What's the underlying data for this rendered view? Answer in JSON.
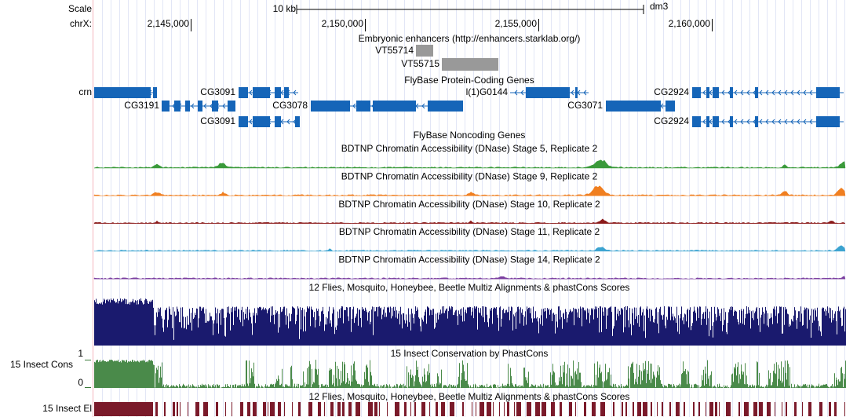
{
  "ruler": {
    "scale_label": "Scale",
    "scale_length": "10 kb",
    "assembly": "dm3",
    "chrom": "chrX:",
    "positions": [
      "2,145,000",
      "2,150,000",
      "2,155,000",
      "2,160,000"
    ]
  },
  "tracks": {
    "enhancers": {
      "title": "Embryonic enhancers (http://enhancers.starklab.org/)",
      "items": [
        "VT55714",
        "VT55715"
      ]
    },
    "coding": {
      "title": "FlyBase Protein-Coding Genes",
      "genes": [
        "crn",
        "CG3091",
        "l(1)G0144",
        "CG2924",
        "CG3191",
        "CG3078",
        "CG3071",
        "CG3091",
        "CG2924"
      ]
    },
    "noncoding": {
      "title": "FlyBase Noncoding Genes"
    },
    "dnase": [
      {
        "title": "BDTNP Chromatin Accessibility (DNase) Stage 5, Replicate 2",
        "color": "#3a9a3a"
      },
      {
        "title": "BDTNP Chromatin Accessibility (DNase) Stage 9, Replicate 2",
        "color": "#f07f20"
      },
      {
        "title": "BDTNP Chromatin Accessibility (DNase) Stage 10, Replicate 2",
        "color": "#8b1a1a"
      },
      {
        "title": "BDTNP Chromatin Accessibility (DNase) Stage 11, Replicate 2",
        "color": "#3ba3d0"
      },
      {
        "title": "BDTNP Chromatin Accessibility (DNase) Stage 14, Replicate 2",
        "color": "#7b3fa0"
      }
    ],
    "multiz": {
      "title": "12 Flies, Mosquito, Honeybee, Beetle Multiz Alignments & phastCons Scores"
    },
    "phastcons": {
      "title": "15 Insect Conservation by PhastCons",
      "side_label": "15 Insect Cons",
      "max": "1",
      "min": "0"
    },
    "elements": {
      "title": "12 Flies, Mosquito, Honeybee, Beetle Multiz Alignments & phastCons Scores",
      "side_label": "15 Insect El"
    }
  }
}
